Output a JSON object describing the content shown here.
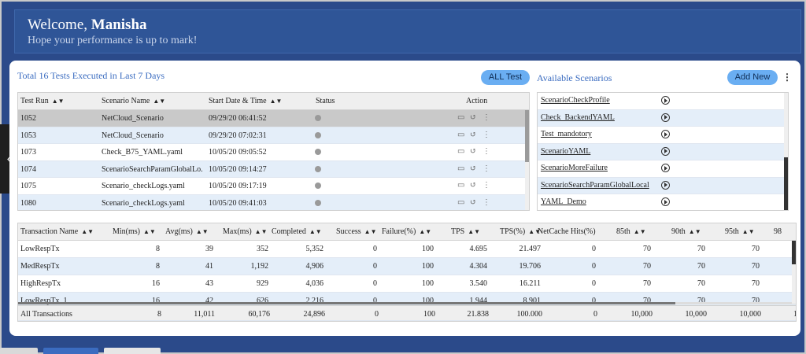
{
  "header": {
    "greeting": "Welcome, ",
    "user": "Manisha",
    "subtitle": "Hope your performance is up to mark!"
  },
  "summary": {
    "total_text": "Total 16 Tests Executed in Last 7 Days",
    "all_test_label": "ALL Test",
    "available_label": "Available Scenarios",
    "add_new_label": "Add New"
  },
  "test_runs": {
    "columns": [
      "Test Run",
      "Scenario Name",
      "Start Date & Time",
      "Status",
      "Action"
    ],
    "rows": [
      {
        "id": "1052",
        "scenario": "NetCloud_Scenario",
        "start": "09/29/20 06:41:52"
      },
      {
        "id": "1053",
        "scenario": "NetCloud_Scenario",
        "start": "09/29/20 07:02:31"
      },
      {
        "id": "1073",
        "scenario": "Check_B75_YAML.yaml",
        "start": "10/05/20 09:05:52"
      },
      {
        "id": "1074",
        "scenario": "ScenarioSearchParamGlobalLo...",
        "start": "10/05/20 09:14:27"
      },
      {
        "id": "1075",
        "scenario": "Scenario_checkLogs.yaml",
        "start": "10/05/20 09:17:19"
      },
      {
        "id": "1080",
        "scenario": "Scenario_checkLogs.yaml",
        "start": "10/05/20 09:41:03"
      }
    ]
  },
  "scenarios": [
    "ScenarioCheckProfile",
    "Check_BackendYAML",
    "Test_mandotory",
    "ScenarioYAML",
    "ScenarioMoreFailure",
    "ScenarioSearchParamGlobalLocal",
    "YAML_Demo"
  ],
  "transactions": {
    "columns": [
      "Transaction Name",
      "Min(ms)",
      "Avg(ms)",
      "Max(ms)",
      "Completed",
      "Success",
      "Failure(%)",
      "TPS",
      "TPS(%)",
      "NetCache Hits(%)",
      "85th",
      "90th",
      "95th",
      "98"
    ],
    "rows": [
      [
        "LowRespTx",
        "8",
        "39",
        "352",
        "5,352",
        "0",
        "100",
        "4.695",
        "21.497",
        "0",
        "70",
        "70",
        "70",
        ""
      ],
      [
        "MedRespTx",
        "8",
        "41",
        "1,192",
        "4,906",
        "0",
        "100",
        "4.304",
        "19.706",
        "0",
        "70",
        "70",
        "70",
        ""
      ],
      [
        "HighRespTx",
        "16",
        "43",
        "929",
        "4,036",
        "0",
        "100",
        "3.540",
        "16.211",
        "0",
        "70",
        "70",
        "70",
        ""
      ],
      [
        "LowRespTx_1",
        "16",
        "42",
        "626",
        "2,216",
        "0",
        "100",
        "1.944",
        "8.901",
        "0",
        "70",
        "70",
        "70",
        ""
      ]
    ],
    "total": [
      "All Transactions",
      "8",
      "11,011",
      "60,176",
      "24,896",
      "0",
      "100",
      "21.838",
      "100.000",
      "0",
      "10,000",
      "10,000",
      "10,000",
      "1"
    ]
  },
  "icons": {
    "status": "status-check-icon",
    "action": [
      "save-icon",
      "history-icon",
      "more-vertical-icon"
    ],
    "play": "play-circle-icon",
    "sort": "sort-icon"
  },
  "colors": {
    "page_bg": "#2b4a8a",
    "header_bg": "#2f5597",
    "accent": "#6aaef2",
    "link": "#3b6cc0",
    "selected_row": "#c9c9c9",
    "alt_row": "#e4eef9"
  }
}
